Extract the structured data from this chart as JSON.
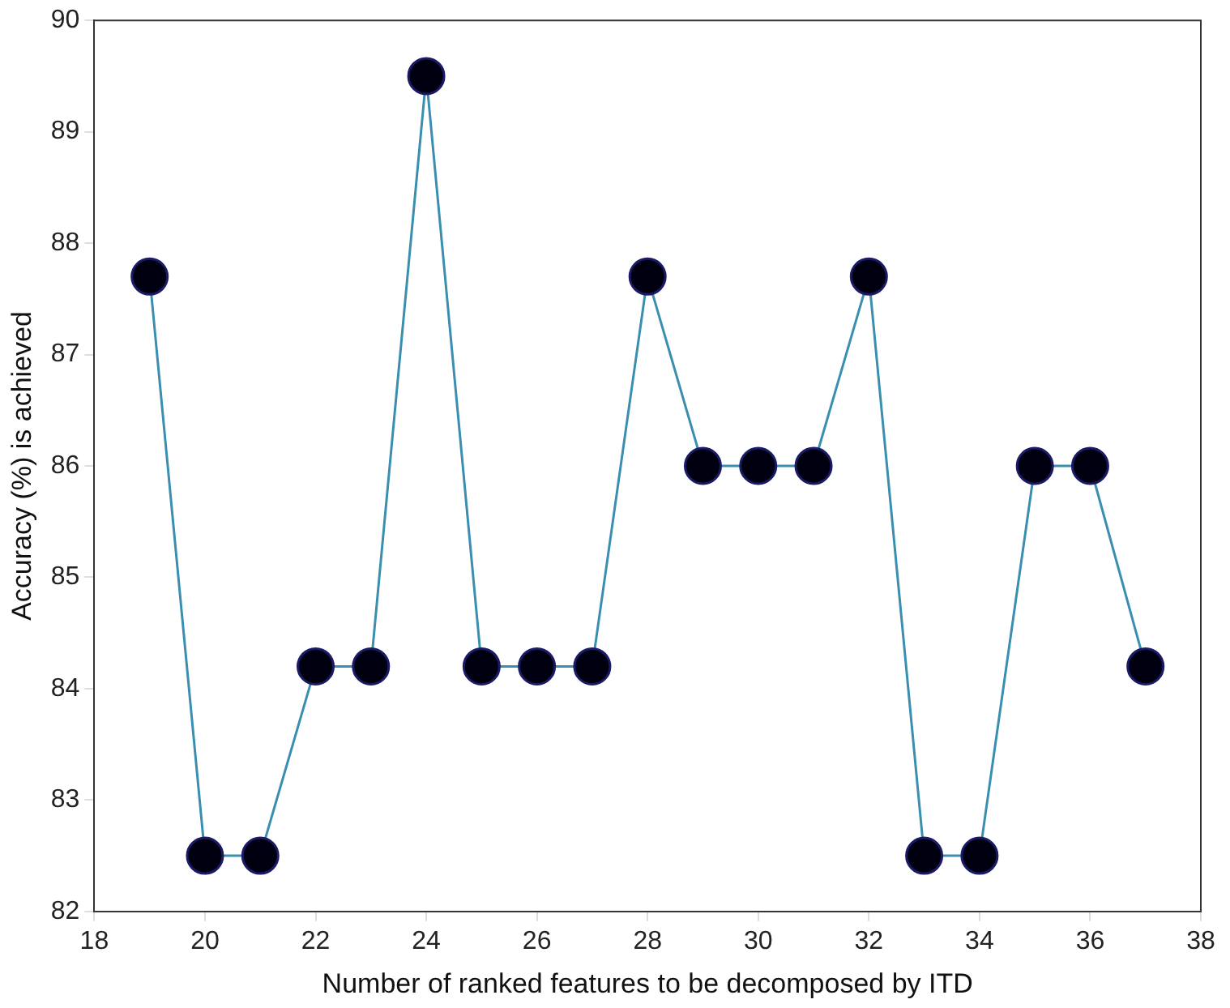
{
  "chart_data": {
    "type": "line",
    "xlabel": "Number of ranked features to be decomposed by ITD",
    "ylabel": "Accuracy (%) is achieved",
    "x": [
      19,
      20,
      21,
      22,
      23,
      24,
      25,
      26,
      27,
      28,
      29,
      30,
      31,
      32,
      33,
      34,
      35,
      36,
      37
    ],
    "series": [
      {
        "color": "#3a8fb0",
        "values": [
          87.7,
          82.5,
          82.5,
          84.2,
          84.2,
          89.5,
          84.2,
          84.2,
          84.2,
          87.7,
          86.0,
          86.0,
          86.0,
          87.7,
          82.5,
          82.5,
          86.0,
          86.0,
          84.2
        ]
      }
    ],
    "xlim": [
      18,
      38
    ],
    "xticks": [
      18,
      20,
      22,
      24,
      26,
      28,
      30,
      32,
      34,
      36,
      38
    ],
    "ylim": [
      82,
      90
    ],
    "yticks": [
      82,
      83,
      84,
      85,
      86,
      87,
      88,
      89,
      90
    ],
    "grid": false,
    "legend": false,
    "marker": "circle",
    "line_style": "solid"
  }
}
